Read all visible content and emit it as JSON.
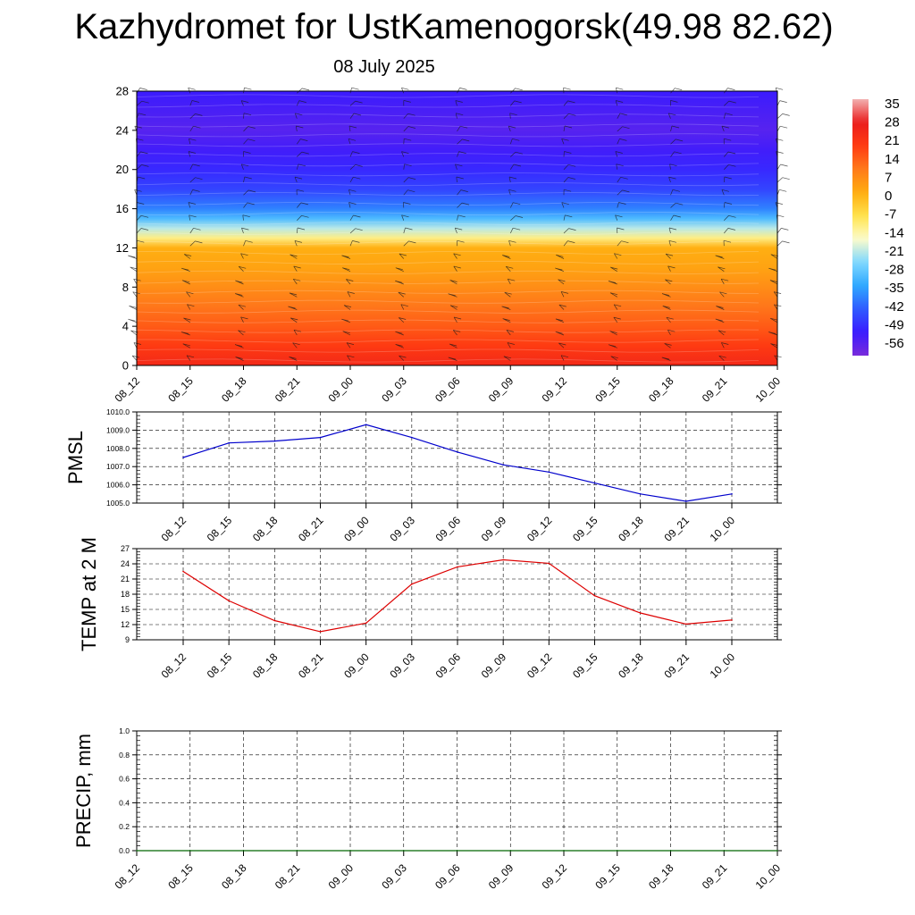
{
  "header": {
    "title": "Kazhydromet for UstKamenogorsk(49.98 82.62)",
    "date": "08 July 2025"
  },
  "chart_data": [
    {
      "type": "heatmap",
      "ylim": [
        0,
        28
      ],
      "y_ticks": [
        "0",
        "4",
        "8",
        "12",
        "16",
        "20",
        "24",
        "28"
      ],
      "x_ticks": [
        "08_12",
        "08_15",
        "08_18",
        "08_21",
        "09_00",
        "09_03",
        "09_06",
        "09_09",
        "09_12",
        "09_15",
        "09_18",
        "09_21",
        "10_00"
      ],
      "colorbar_labels": [
        "35",
        "28",
        "21",
        "14",
        "7",
        "0",
        "-7",
        "-14",
        "-21",
        "-28",
        "-35",
        "-42",
        "-49",
        "-56"
      ],
      "colorbar_values": [
        35,
        28,
        21,
        14,
        7,
        0,
        -7,
        -14,
        -21,
        -28,
        -35,
        -42,
        -49,
        -56
      ],
      "colorbar_range": [
        -63,
        38
      ],
      "temperature_profile": {
        "heights": [
          0,
          2,
          4,
          6,
          8,
          10,
          12,
          13,
          14,
          15,
          16,
          18,
          20,
          22,
          24,
          26,
          28
        ],
        "values": [
          25,
          20,
          15,
          11,
          7,
          3,
          1,
          -12,
          -22,
          -32,
          -40,
          -48,
          -52,
          -55,
          -58,
          -56,
          -54
        ]
      },
      "wind_barbs": true,
      "colors": {
        "scale": [
          "#7a2cdb",
          "#3a1bff",
          "#2f5bff",
          "#2fa8ff",
          "#7fd8ff",
          "#fdfccb",
          "#ffe34d",
          "#ffad10",
          "#ff7a1a",
          "#ff3b12",
          "#ea1d1d",
          "#f2b0b0"
        ]
      }
    },
    {
      "type": "line",
      "ylabel": "PMSL",
      "ylim": [
        1005.0,
        1010.0
      ],
      "y_ticks": [
        "1005.0",
        "1006.0",
        "1007.0",
        "1008.0",
        "1009.0",
        "1010.0"
      ],
      "categories": [
        "08_12",
        "08_15",
        "08_18",
        "08_21",
        "09_00",
        "09_03",
        "09_06",
        "09_09",
        "09_12",
        "09_15",
        "09_18",
        "09_21",
        "10_00"
      ],
      "values": [
        1007.5,
        1008.3,
        1008.4,
        1008.6,
        1009.3,
        1008.6,
        1007.8,
        1007.1,
        1006.7,
        1006.1,
        1005.5,
        1005.1,
        1005.5
      ],
      "colors": {
        "line": "#0000cc"
      }
    },
    {
      "type": "line",
      "ylabel": "TEMP at 2 M",
      "ylim": [
        9,
        27
      ],
      "y_ticks": [
        "9",
        "12",
        "15",
        "18",
        "21",
        "24",
        "27"
      ],
      "categories": [
        "08_12",
        "08_15",
        "08_18",
        "08_21",
        "09_00",
        "09_03",
        "09_06",
        "09_09",
        "09_12",
        "09_15",
        "09_18",
        "09_21",
        "10_00"
      ],
      "values": [
        22.5,
        16.7,
        12.8,
        10.6,
        12.3,
        20.0,
        23.4,
        24.8,
        24.1,
        17.7,
        14.3,
        12.1,
        12.9
      ],
      "colors": {
        "line": "#dd0000"
      }
    },
    {
      "type": "line",
      "ylabel": "PRECIP, mm",
      "ylim": [
        0.0,
        1.0
      ],
      "y_ticks": [
        "0.0",
        "0.2",
        "0.4",
        "0.6",
        "0.8",
        "1.0"
      ],
      "categories": [
        "08_12",
        "08_15",
        "08_18",
        "08_21",
        "09_00",
        "09_03",
        "09_06",
        "09_09",
        "09_12",
        "09_15",
        "09_18",
        "09_21",
        "10_00"
      ],
      "values": [
        0,
        0,
        0,
        0,
        0,
        0,
        0,
        0,
        0,
        0,
        0,
        0,
        0
      ],
      "colors": {
        "line": "#006600"
      }
    }
  ]
}
